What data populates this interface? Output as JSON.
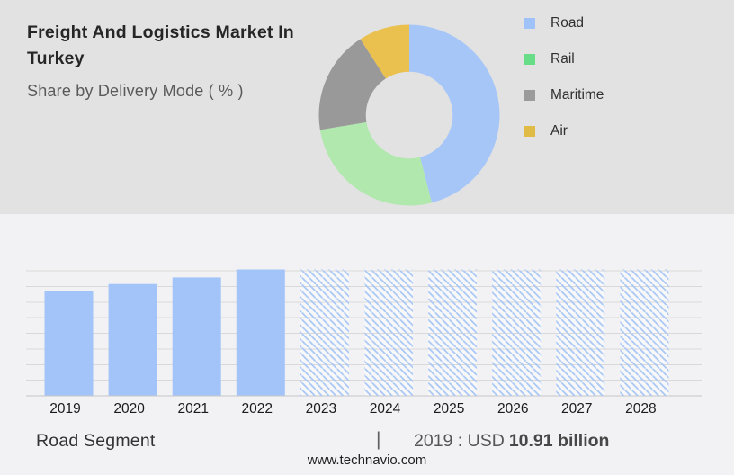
{
  "theme": {
    "header_bg": "#e2e2e2",
    "body_bg": "#f2f2f4",
    "title_color": "#262626",
    "subtitle_color": "#5a5a5a",
    "bar_blue": "#a3c4f8",
    "grid_color": "#d9d9d9",
    "axis_color": "#c7c7c9"
  },
  "header": {
    "title": "Freight And Logistics Market In\nTurkey",
    "subtitle": "Share by Delivery Mode ( % )"
  },
  "chart_data": [
    {
      "id": "delivery-mode-share",
      "type": "pie",
      "subtype": "donut",
      "title": "Share by Delivery Mode ( % )",
      "unit": "%",
      "start_angle_deg": 0,
      "clockwise": true,
      "inner_radius_ratio": 0.48,
      "legend_position": "right",
      "slices": [
        {
          "label": "Road",
          "value": 46.0,
          "color": "#a7c6f8",
          "legend_color": "#9fc3f8"
        },
        {
          "label": "Rail",
          "value": 26.4,
          "color": "#b0e8ae",
          "legend_color": "#68dd87"
        },
        {
          "label": "Maritime",
          "value": 18.5,
          "color": "#999999",
          "legend_color": "#9b9b9b"
        },
        {
          "label": "Air",
          "value": 9.1,
          "color": "#eac04e",
          "legend_color": "#e0bc46"
        }
      ]
    },
    {
      "id": "road-segment-market-size-by-year",
      "type": "bar",
      "title": "Road Segment",
      "categories": [
        "2019",
        "2020",
        "2021",
        "2022",
        "2023",
        "2024",
        "2025",
        "2026",
        "2027",
        "2028"
      ],
      "values_relative": [
        0.83,
        0.885,
        0.937,
        1.0,
        1.0,
        1.0,
        1.0,
        1.0,
        1.0,
        1.0
      ],
      "forecast": [
        false,
        false,
        false,
        false,
        true,
        true,
        true,
        true,
        true,
        true
      ],
      "bar_color": "#a3c4f8",
      "hatch_color": "#a9c7f6",
      "hatch_style": "diagonal-down",
      "gridline_count": 9,
      "grid_on": true,
      "y_axis_labels_shown": false,
      "known_point": {
        "year": "2019",
        "value": "USD 10.91 billion"
      }
    }
  ],
  "caption": {
    "segment": "Road Segment",
    "separator": "|",
    "value_prefix": "2019 : USD",
    "value_bold": "10.91 billion"
  },
  "footer": {
    "url": "www.technavio.com"
  }
}
